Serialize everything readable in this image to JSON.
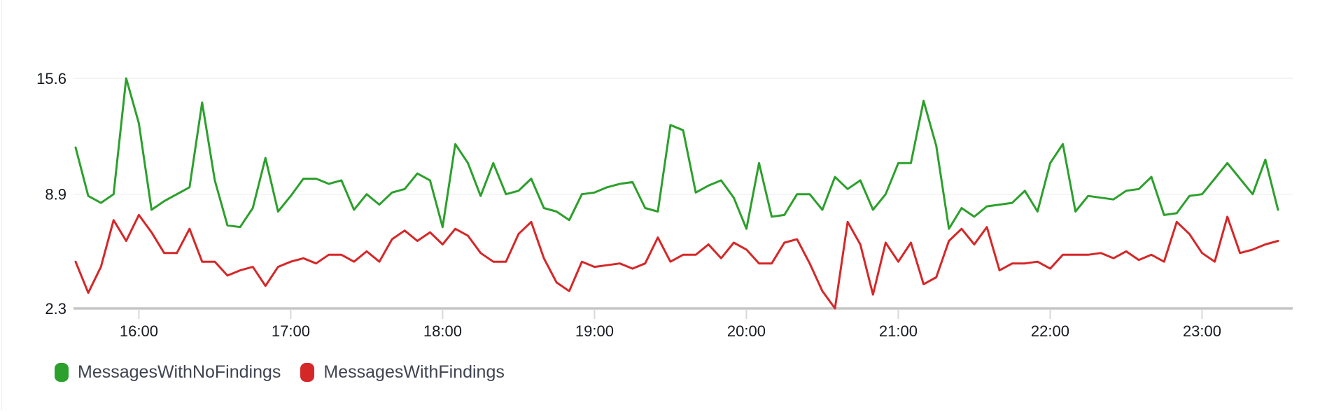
{
  "chart_data": {
    "type": "line",
    "title": "",
    "xlabel": "",
    "ylabel": "",
    "grid": "horizontal-only",
    "legend_position": "bottom-left",
    "ylim": [
      2.3,
      15.6
    ],
    "y_ticks": [
      "15.6",
      "8.9",
      "2.3"
    ],
    "x_ticks": [
      "16:00",
      "17:00",
      "18:00",
      "19:00",
      "20:00",
      "21:00",
      "22:00",
      "23:00"
    ],
    "start_time": "15:35",
    "end_time": "23:30",
    "interval_minutes": 5,
    "series": [
      {
        "name": "MessagesWithNoFindings",
        "color": "#2ca02c",
        "values": [
          11.6,
          8.8,
          8.4,
          8.9,
          15.6,
          13.0,
          8.0,
          8.5,
          8.9,
          9.3,
          14.2,
          9.7,
          7.1,
          7.0,
          8.1,
          11.0,
          7.9,
          8.8,
          9.8,
          9.8,
          9.5,
          9.7,
          8.0,
          8.9,
          8.3,
          9.0,
          9.2,
          10.1,
          9.7,
          7.0,
          11.8,
          10.7,
          8.8,
          10.7,
          8.9,
          9.1,
          9.8,
          8.1,
          7.9,
          7.4,
          8.9,
          9.0,
          9.3,
          9.5,
          9.6,
          8.1,
          7.9,
          12.9,
          12.6,
          9.0,
          9.4,
          9.7,
          8.7,
          6.9,
          10.7,
          7.6,
          7.7,
          8.9,
          8.9,
          8.0,
          9.9,
          9.2,
          9.7,
          8.0,
          8.9,
          10.7,
          10.7,
          14.3,
          11.7,
          6.9,
          8.1,
          7.6,
          8.2,
          8.3,
          8.4,
          9.1,
          7.9,
          10.7,
          11.8,
          7.9,
          8.8,
          8.7,
          8.6,
          9.1,
          9.2,
          9.9,
          7.7,
          7.8,
          8.8,
          8.9,
          9.8,
          10.7,
          9.8,
          8.9,
          10.9,
          8.0
        ]
      },
      {
        "name": "MessagesWithFindings",
        "color": "#d62728",
        "values": [
          5.0,
          3.2,
          4.7,
          7.4,
          6.2,
          7.7,
          6.7,
          5.5,
          5.5,
          6.9,
          5.0,
          5.0,
          4.2,
          4.5,
          4.7,
          3.6,
          4.7,
          5.0,
          5.2,
          4.9,
          5.4,
          5.4,
          5.0,
          5.6,
          5.0,
          6.3,
          6.8,
          6.2,
          6.7,
          6.0,
          6.9,
          6.5,
          5.5,
          5.0,
          5.0,
          6.6,
          7.3,
          5.2,
          3.8,
          3.3,
          5.0,
          4.7,
          4.8,
          4.9,
          4.6,
          4.9,
          6.4,
          5.0,
          5.4,
          5.4,
          6.0,
          5.2,
          6.1,
          5.7,
          4.9,
          4.9,
          6.1,
          6.3,
          4.9,
          3.3,
          2.3,
          7.3,
          6.0,
          3.1,
          6.1,
          5.0,
          6.1,
          3.7,
          4.1,
          6.2,
          6.9,
          6.0,
          7.0,
          4.5,
          4.9,
          4.9,
          5.0,
          4.6,
          5.4,
          5.4,
          5.4,
          5.5,
          5.2,
          5.6,
          5.1,
          5.4,
          5.0,
          7.3,
          6.6,
          5.5,
          5.0,
          7.6,
          5.5,
          5.7,
          6.0,
          6.2
        ]
      }
    ],
    "axis_colors": {
      "gridline": "#f0f0f0",
      "baseline": "#c6c6c6",
      "tick": "#d8d8d8",
      "label": "#16191f"
    }
  },
  "legend": {
    "items": [
      {
        "label": "MessagesWithNoFindings"
      },
      {
        "label": "MessagesWithFindings"
      }
    ]
  }
}
